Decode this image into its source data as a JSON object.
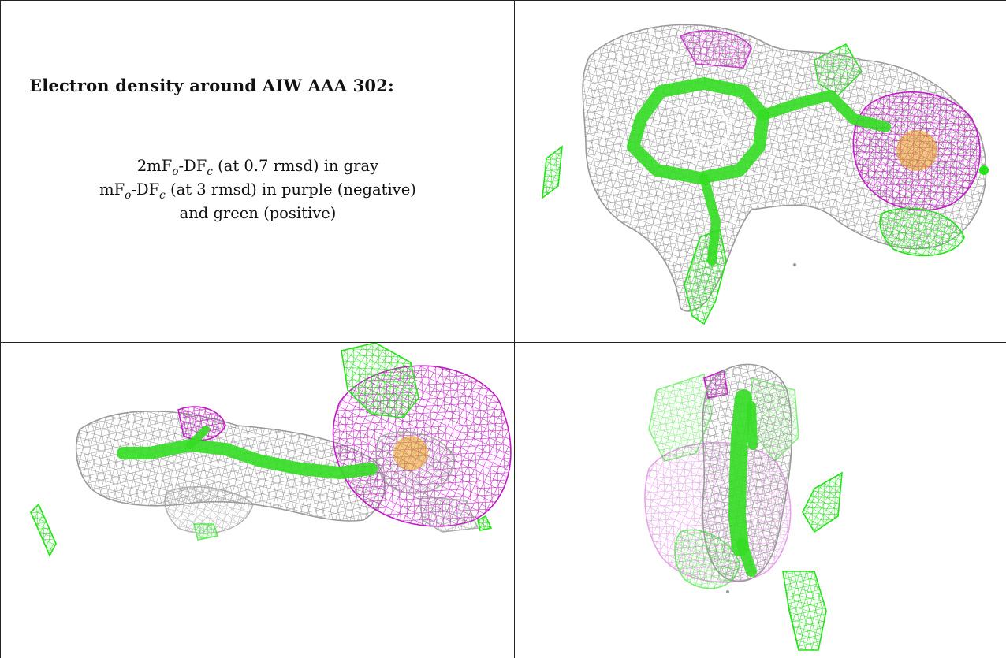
{
  "legend": {
    "title": "Electron density around AIW AAA 302:",
    "line1": {
      "prefix": "2mF",
      "sub1": "o",
      "mid": "-DF",
      "sub2": "c",
      "suffix": " (at 0.7 rmsd) in gray"
    },
    "line2": {
      "prefix": "mF",
      "sub1": "o",
      "mid": "-DF",
      "sub2": "c",
      "suffix": " (at 3 rmsd) in purple (negative)"
    },
    "line3": "and green (positive)"
  },
  "colors": {
    "gray_map": "#9a9a9a",
    "negative_map": "#c21cc6",
    "positive_map": "#26e21a",
    "ligand": "#33dd22",
    "metal": "#e8a21a"
  },
  "views": [
    {
      "name": "view-top",
      "icon": "density-mesh-top-view"
    },
    {
      "name": "view-side",
      "icon": "density-mesh-side-view"
    },
    {
      "name": "view-end",
      "icon": "density-mesh-end-view"
    }
  ]
}
